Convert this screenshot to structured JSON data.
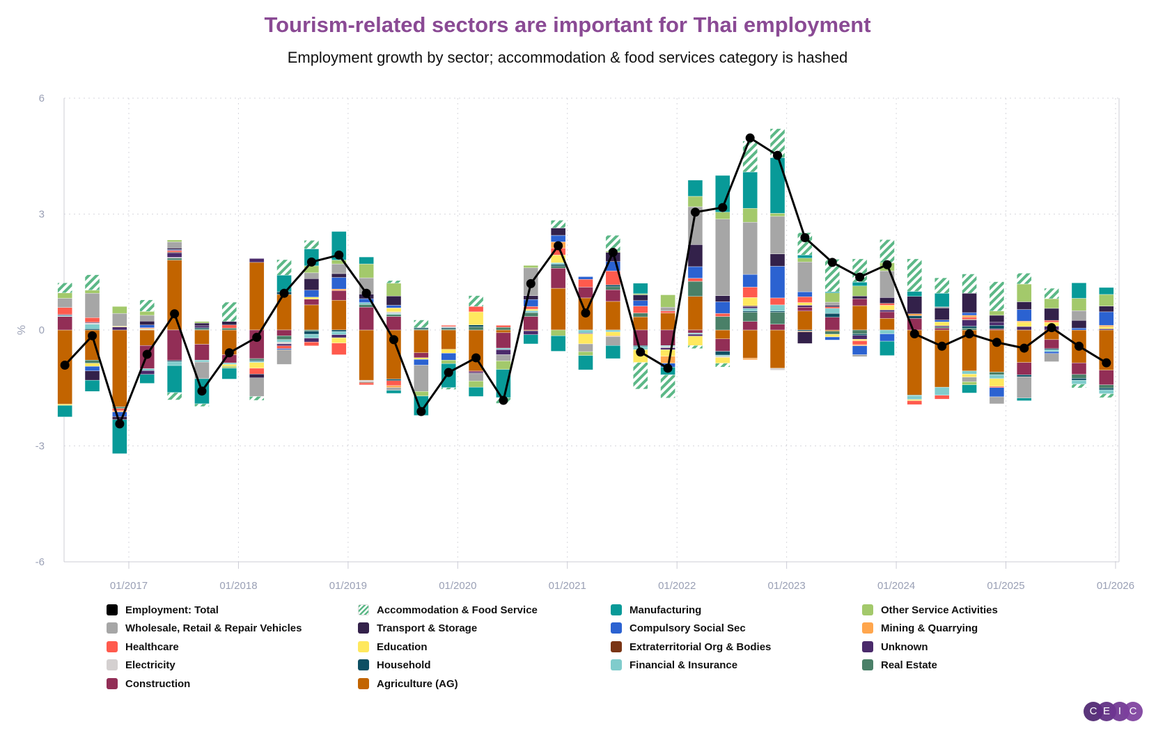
{
  "title": "Tourism-related sectors are important for Thai employment",
  "subtitle": "Employment growth by sector; accommodation & food services category is hashed",
  "logo_text": "CEIC",
  "chart_data": {
    "type": "bar",
    "stacked": true,
    "ylabel": "%",
    "ylim": [
      -6,
      6
    ],
    "yticks": [
      "6",
      "3",
      "0",
      "-3",
      "-6"
    ],
    "ytick_values": [
      6,
      3,
      0,
      -3,
      -6
    ],
    "xticks": [
      "01/2017",
      "01/2018",
      "01/2019",
      "01/2020",
      "01/2021",
      "01/2022",
      "01/2023",
      "01/2024",
      "01/2025",
      "01/2026"
    ],
    "grid": true,
    "legend_position": "bottom",
    "x": [
      "2016-06",
      "2016-09",
      "2016-12",
      "2017-03",
      "2017-06",
      "2017-09",
      "2017-12",
      "2018-03",
      "2018-06",
      "2018-09",
      "2018-12",
      "2019-03",
      "2019-06",
      "2019-09",
      "2019-12",
      "2020-03",
      "2020-06",
      "2020-09",
      "2020-12",
      "2021-03",
      "2021-06",
      "2021-09",
      "2021-12",
      "2022-03",
      "2022-06",
      "2022-09",
      "2022-12",
      "2023-03",
      "2023-06",
      "2023-09",
      "2023-12",
      "2024-03",
      "2024-06",
      "2024-09",
      "2024-12",
      "2025-03",
      "2025-06",
      "2025-09",
      "2025-12"
    ],
    "series": [
      {
        "name": "Employment: Total",
        "type": "line",
        "color": "#000000",
        "values": [
          -0.91,
          -0.15,
          -2.43,
          -0.63,
          0.42,
          -1.58,
          -0.59,
          -0.19,
          0.95,
          1.76,
          1.94,
          0.95,
          -0.25,
          -2.11,
          -1.1,
          -0.72,
          -1.82,
          1.2,
          2.18,
          0.44,
          2.01,
          -0.57,
          -0.99,
          3.05,
          3.17,
          4.97,
          4.52,
          2.39,
          1.75,
          1.37,
          1.69,
          -0.1,
          -0.42,
          -0.1,
          -0.32,
          -0.47,
          0.06,
          -0.42,
          -0.85
        ]
      },
      {
        "name": "Accommodation & Food Service",
        "type": "bar",
        "color": "#5cb887",
        "hatched": true,
        "values": [
          0.26,
          0.4,
          0,
          0.3,
          -0.19,
          -0.07,
          0.5,
          -0.1,
          0.4,
          0.22,
          0,
          0,
          0.07,
          0.2,
          -0.05,
          0.28,
          -0.15,
          0,
          0.2,
          0,
          0.41,
          -0.69,
          -0.6,
          -0.08,
          -0.1,
          0.8,
          0.75,
          0.58,
          0.84,
          0.6,
          0.6,
          0.84,
          0.4,
          0.5,
          0.76,
          0.28,
          0.27,
          -0.1,
          -0.1
        ]
      },
      {
        "name": "Manufacturing",
        "type": "bar",
        "color": "#089a98",
        "values": [
          -0.3,
          -0.29,
          -0.88,
          -0.23,
          -0.7,
          -0.65,
          -0.28,
          0,
          0.43,
          0.44,
          0.74,
          0.18,
          -0.08,
          -0.5,
          -0.62,
          -0.24,
          -0.73,
          -0.24,
          -0.4,
          -0.37,
          -0.34,
          0.27,
          -0.2,
          0.42,
          0.95,
          0.94,
          1.44,
          0.08,
          0.03,
          0.1,
          -0.37,
          0.13,
          0.35,
          -0.21,
          0,
          -0.07,
          0,
          0.4,
          0.18
        ]
      },
      {
        "name": "Other Service Activities",
        "type": "bar",
        "color": "#a3c96b",
        "values": [
          0.14,
          0.08,
          0.18,
          0.1,
          0.05,
          0.04,
          -0.05,
          0,
          0,
          0.18,
          0.1,
          0.36,
          0.33,
          -0.12,
          -0.09,
          -0.16,
          -0.22,
          0.06,
          -0.15,
          -0.1,
          0.03,
          0.03,
          0.32,
          0.27,
          0.18,
          0.36,
          0.08,
          0.1,
          0.24,
          0.26,
          0.21,
          0,
          0,
          -0.08,
          0.11,
          0.46,
          0.25,
          0.32,
          0.3
        ]
      },
      {
        "name": "Wholesale, Retail & Repair Vehicles",
        "type": "bar",
        "color": "#a6a6a6",
        "values": [
          0.24,
          0.63,
          0.33,
          0.15,
          0.16,
          -0.43,
          0,
          -0.48,
          -0.38,
          0.15,
          0.25,
          0.42,
          -0.07,
          -0.68,
          0,
          -0.2,
          -0.16,
          0.72,
          0,
          -0.2,
          -0.23,
          0,
          0.1,
          0.98,
          1.98,
          1.35,
          0.97,
          0.77,
          0.08,
          -0.05,
          0.69,
          0,
          0.03,
          -0.12,
          -0.18,
          -0.55,
          -0.21,
          0.25,
          0
        ]
      },
      {
        "name": "Transport & Storage",
        "type": "bar",
        "color": "#33214a",
        "values": [
          0,
          -0.24,
          -0.08,
          0.1,
          0.04,
          0.07,
          0.09,
          -0.1,
          0,
          0.3,
          0.1,
          0.12,
          0.24,
          0,
          0,
          0,
          0,
          0.1,
          0.19,
          0,
          0.24,
          0.15,
          0,
          0.57,
          0.16,
          0,
          0.32,
          -0.3,
          0.04,
          0.07,
          0.15,
          0.45,
          0.31,
          0.5,
          0.18,
          0.2,
          0.31,
          0.2,
          0.15
        ]
      },
      {
        "name": "Compulsory Social Sec",
        "type": "bar",
        "color": "#2b62d1",
        "values": [
          0,
          -0.12,
          -0.12,
          0.07,
          0.02,
          0,
          0,
          0,
          -0.03,
          0.18,
          0.3,
          0.1,
          0.07,
          -0.15,
          -0.18,
          0,
          0,
          0.18,
          0.17,
          0.07,
          0.24,
          0.14,
          -0.1,
          0.3,
          0.3,
          0.33,
          0.82,
          0.13,
          -0.08,
          -0.23,
          -0.19,
          0,
          0.05,
          0.07,
          -0.24,
          0.3,
          -0.05,
          0.05,
          0.35
        ]
      },
      {
        "name": "Mining & Quarrying",
        "type": "bar",
        "color": "#ffa64d",
        "values": [
          0,
          0,
          -0.03,
          0,
          0,
          0,
          0,
          0,
          0,
          0,
          0.04,
          0,
          -0.05,
          0,
          0,
          0,
          0,
          0,
          0.16,
          0,
          -0.02,
          0,
          -0.18,
          0,
          0,
          -0.04,
          0,
          -0.02,
          0,
          -0.03,
          0,
          0.05,
          0,
          0.05,
          0,
          0.03,
          0,
          0,
          0.04
        ]
      },
      {
        "name": "Healthcare",
        "type": "bar",
        "color": "#ff5a4d",
        "values": [
          0.18,
          0.12,
          -0.06,
          0.02,
          0.04,
          0,
          0.08,
          -0.15,
          -0.07,
          -0.1,
          -0.3,
          -0.05,
          -0.13,
          0,
          0.03,
          0.14,
          0.05,
          0.07,
          0.18,
          0.2,
          0.36,
          0.18,
          0.05,
          0.08,
          0.08,
          0.27,
          0.18,
          0.15,
          0.04,
          -0.1,
          0.05,
          -0.1,
          -0.1,
          0.05,
          -0.03,
          0,
          0.05,
          0,
          0
        ]
      },
      {
        "name": "Education",
        "type": "bar",
        "color": "#ffe85e",
        "values": [
          -0.03,
          -0.08,
          0.02,
          0.02,
          0,
          0,
          -0.05,
          -0.15,
          0,
          0.05,
          -0.14,
          0,
          0.1,
          -0.04,
          -0.1,
          0.34,
          0,
          0.04,
          0.2,
          -0.26,
          -0.1,
          -0.33,
          -0.17,
          -0.24,
          -0.15,
          0.21,
          0,
          0.07,
          -0.07,
          -0.04,
          0.12,
          -0.03,
          0.1,
          -0.08,
          -0.2,
          0.11,
          0.1,
          0,
          0.05
        ]
      },
      {
        "name": "Extraterritorial Org & Bodies",
        "type": "bar",
        "color": "#7a3515",
        "values": [
          0,
          0,
          0,
          0,
          0.02,
          0,
          0,
          0,
          0,
          0,
          0,
          -0.02,
          0,
          0,
          0,
          0,
          0,
          0,
          0,
          0,
          0,
          0,
          0,
          0,
          0,
          0.02,
          0,
          0,
          0,
          0,
          0,
          0,
          0,
          0.02,
          0,
          0,
          0,
          0,
          0
        ]
      },
      {
        "name": "Unknown",
        "type": "bar",
        "color": "#4a2a6b",
        "values": [
          0.02,
          0.02,
          0.08,
          -0.1,
          0.12,
          0.05,
          0,
          0.1,
          -0.05,
          -0.1,
          -0.08,
          0,
          0,
          0,
          0,
          -0.03,
          -0.13,
          -0.1,
          0,
          -0.02,
          0,
          0,
          -0.05,
          -0.05,
          0,
          0.05,
          0,
          0.05,
          0,
          -0.1,
          0.05,
          0,
          0.03,
          0.16,
          0.08,
          0.09,
          0.1,
          0,
          0.03
        ]
      },
      {
        "name": "Electricity",
        "type": "bar",
        "color": "#d4d0d0",
        "values": [
          0,
          0.03,
          0,
          0.02,
          0.02,
          0,
          0,
          0,
          -0.05,
          0,
          0,
          -0.05,
          0.04,
          0,
          0.03,
          0,
          0,
          0,
          0,
          0,
          0,
          0,
          -0.03,
          0,
          -0.03,
          0,
          -0.05,
          0,
          0,
          0,
          0,
          0,
          0,
          0,
          0,
          0,
          0,
          0,
          0
        ]
      },
      {
        "name": "Household",
        "type": "bar",
        "color": "#0d4f63",
        "values": [
          0,
          0.03,
          0,
          0,
          -0.03,
          0.03,
          0,
          -0.03,
          0.07,
          -0.08,
          -0.04,
          0,
          -0.04,
          0.03,
          0.03,
          0.05,
          0,
          0,
          0.04,
          0,
          0.05,
          -0.03,
          0,
          0,
          -0.1,
          0.03,
          0.03,
          -0.03,
          0.1,
          -0.04,
          0,
          0.07,
          0,
          0.05,
          0.09,
          -0.05,
          -0.03,
          -0.05,
          -0.05
        ]
      },
      {
        "name": "Financial & Insurance",
        "type": "bar",
        "color": "#80cccc",
        "values": [
          0.03,
          0.12,
          0,
          -0.05,
          -0.1,
          -0.05,
          -0.04,
          -0.03,
          -0.06,
          -0.1,
          -0.08,
          0.05,
          0.03,
          0,
          0,
          0,
          -0.04,
          0.05,
          0.04,
          -0.08,
          -0.05,
          -0.08,
          -0.03,
          -0.03,
          -0.03,
          0.07,
          0.16,
          0,
          0.13,
          0,
          -0.1,
          -0.1,
          -0.21,
          -0.08,
          -0.1,
          0,
          -0.05,
          -0.1,
          -0.1
        ]
      },
      {
        "name": "Real Estate",
        "type": "bar",
        "color": "#4a8068",
        "values": [
          0,
          -0.08,
          -0.04,
          0,
          0.05,
          0.03,
          0.05,
          -0.04,
          -0.1,
          -0.03,
          0,
          0.07,
          0.05,
          0.03,
          0.03,
          0.08,
          0.07,
          0.1,
          0.06,
          0,
          0.08,
          0.1,
          0,
          0.39,
          0.35,
          0.24,
          0.31,
          0,
          -0.08,
          -0.1,
          0,
          -0.02,
          0.03,
          0.05,
          -0.07,
          0,
          0,
          -0.1,
          -0.08
        ]
      },
      {
        "name": "Construction",
        "type": "bar",
        "color": "#922e56",
        "values": [
          0.35,
          0,
          0,
          -0.6,
          -0.79,
          -0.41,
          -0.21,
          -0.74,
          -0.15,
          0.15,
          0.25,
          0.59,
          0.35,
          -0.13,
          0,
          -0.03,
          -0.4,
          0.35,
          0.52,
          0.28,
          0.3,
          -0.4,
          -0.4,
          -0.08,
          -0.32,
          0.22,
          0.15,
          0.1,
          0.33,
          0.18,
          0.17,
          0.3,
          0.05,
          0,
          0.03,
          -0.32,
          -0.23,
          -0.3,
          -0.38
        ]
      },
      {
        "name": "Agriculture (AG)",
        "type": "bar",
        "color": "#c26400",
        "values": [
          -1.92,
          -0.78,
          -1.99,
          -0.4,
          1.81,
          -0.37,
          -0.64,
          1.75,
          0.92,
          0.65,
          0.77,
          -1.3,
          -1.27,
          -0.59,
          -0.5,
          -1.06,
          -0.07,
          -0.02,
          1.08,
          0.83,
          0.74,
          0.34,
          0.44,
          0.87,
          -0.23,
          -0.73,
          -0.99,
          0.49,
          -0.03,
          0.63,
          0.3,
          -1.68,
          -1.48,
          -1.06,
          -1.09,
          -0.84,
          -0.25,
          -0.85,
          -1.04
        ]
      }
    ]
  }
}
